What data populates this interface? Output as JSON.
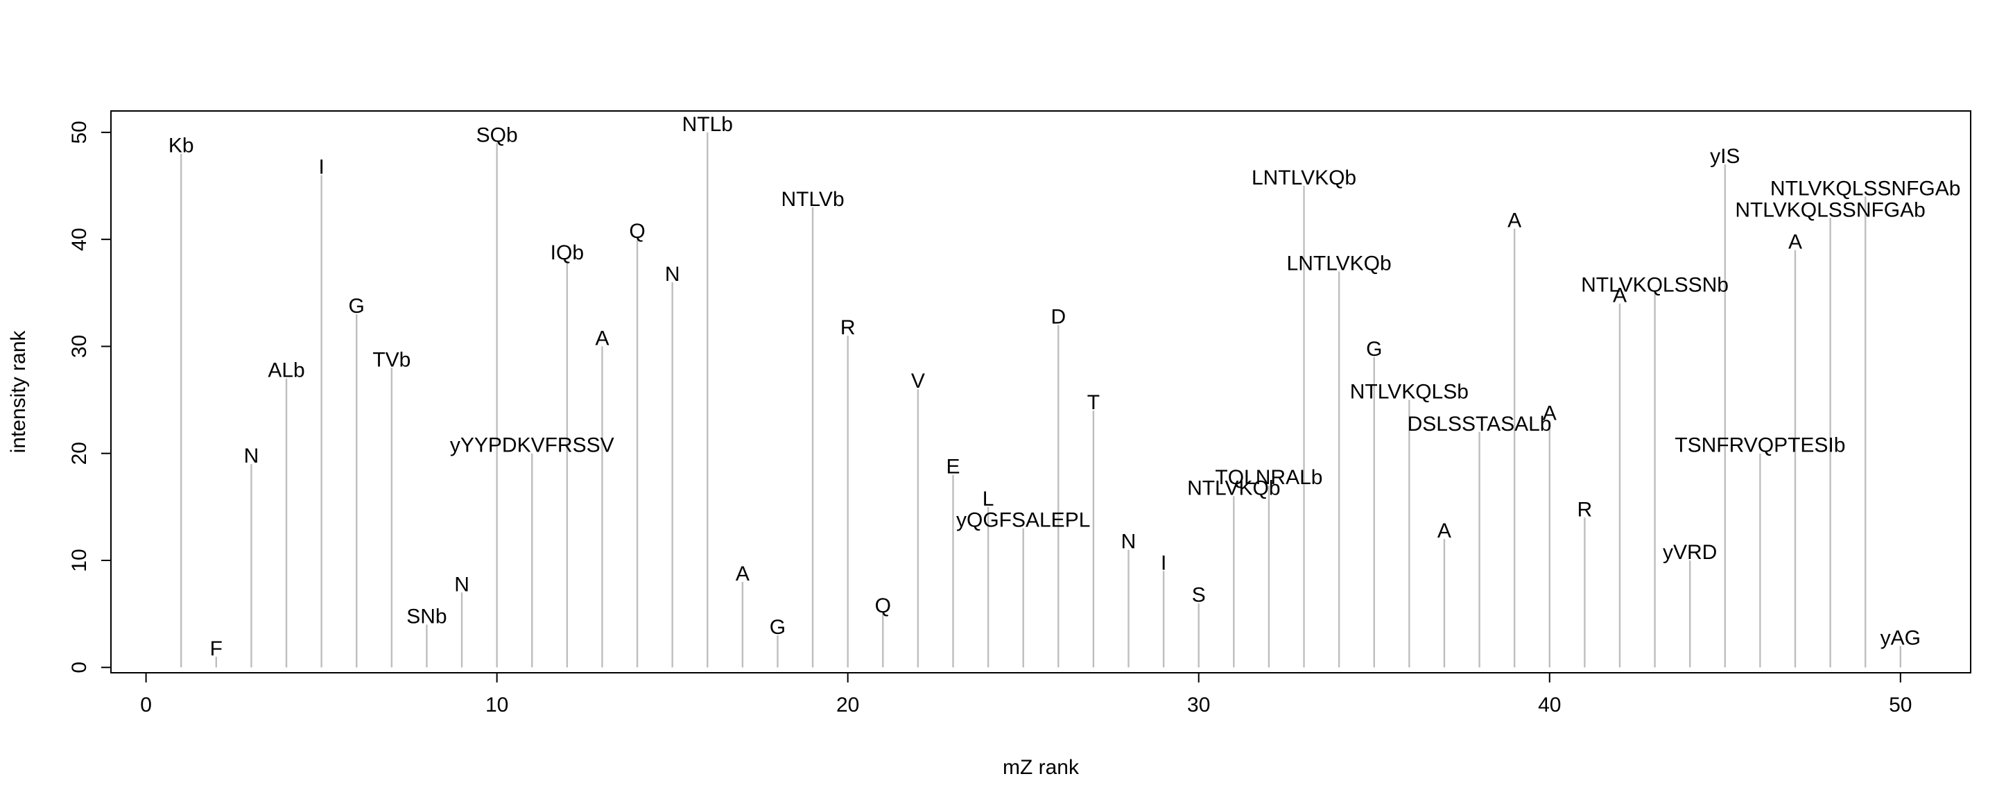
{
  "chart_data": {
    "type": "bar",
    "style": "vertical-stems",
    "xlabel": "mZ rank",
    "ylabel": "intensity rank",
    "xlim": [
      -1,
      52
    ],
    "ylim": [
      -0.5,
      52
    ],
    "xticks": [
      0,
      10,
      20,
      30,
      40,
      50
    ],
    "yticks": [
      0,
      10,
      20,
      30,
      40,
      50
    ],
    "grid": false,
    "stem_color": "#bebebe",
    "points": [
      {
        "x": 1,
        "y": 48,
        "label": "Kb"
      },
      {
        "x": 2,
        "y": 1,
        "label": "F"
      },
      {
        "x": 3,
        "y": 19,
        "label": "N"
      },
      {
        "x": 4,
        "y": 27,
        "label": "ALb"
      },
      {
        "x": 5,
        "y": 46,
        "label": "I"
      },
      {
        "x": 6,
        "y": 33,
        "label": "G"
      },
      {
        "x": 7,
        "y": 28,
        "label": "TVb"
      },
      {
        "x": 8,
        "y": 4,
        "label": "SNb"
      },
      {
        "x": 9,
        "y": 7,
        "label": "N"
      },
      {
        "x": 10,
        "y": 49,
        "label": "SQb"
      },
      {
        "x": 11,
        "y": 20,
        "label": "yYYPDKVFRSSV"
      },
      {
        "x": 12,
        "y": 38,
        "label": "IQb"
      },
      {
        "x": 13,
        "y": 30,
        "label": "A"
      },
      {
        "x": 14,
        "y": 40,
        "label": "Q"
      },
      {
        "x": 15,
        "y": 36,
        "label": "N"
      },
      {
        "x": 16,
        "y": 50,
        "label": "NTLb"
      },
      {
        "x": 17,
        "y": 8,
        "label": "A"
      },
      {
        "x": 18,
        "y": 3,
        "label": "G"
      },
      {
        "x": 19,
        "y": 43,
        "label": "NTLVb"
      },
      {
        "x": 20,
        "y": 31,
        "label": "R"
      },
      {
        "x": 21,
        "y": 5,
        "label": "Q"
      },
      {
        "x": 22,
        "y": 26,
        "label": "V"
      },
      {
        "x": 23,
        "y": 18,
        "label": "E"
      },
      {
        "x": 24,
        "y": 15,
        "label": "L"
      },
      {
        "x": 25,
        "y": 13,
        "label": "yQGFSALEPL"
      },
      {
        "x": 26,
        "y": 32,
        "label": "D"
      },
      {
        "x": 27,
        "y": 24,
        "label": "T"
      },
      {
        "x": 28,
        "y": 11,
        "label": "N"
      },
      {
        "x": 29,
        "y": 9,
        "label": "I"
      },
      {
        "x": 30,
        "y": 6,
        "label": "S"
      },
      {
        "x": 31,
        "y": 16,
        "label": "NTLVKQb"
      },
      {
        "x": 32,
        "y": 17,
        "label": "TQLNRALb"
      },
      {
        "x": 33,
        "y": 45,
        "label": "LNTLVKQb"
      },
      {
        "x": 34,
        "y": 37,
        "label": "LNTLVKQb"
      },
      {
        "x": 35,
        "y": 29,
        "label": "G"
      },
      {
        "x": 36,
        "y": 25,
        "label": "NTLVKQLSb"
      },
      {
        "x": 37,
        "y": 12,
        "label": "A"
      },
      {
        "x": 38,
        "y": 22,
        "label": "DSLSSTASALb"
      },
      {
        "x": 39,
        "y": 41,
        "label": "A"
      },
      {
        "x": 40,
        "y": 23,
        "label": "A"
      },
      {
        "x": 41,
        "y": 14,
        "label": "R"
      },
      {
        "x": 42,
        "y": 34,
        "label": "A"
      },
      {
        "x": 43,
        "y": 35,
        "label": "NTLVKQLSSNb"
      },
      {
        "x": 44,
        "y": 10,
        "label": "yVRD"
      },
      {
        "x": 45,
        "y": 47,
        "label": "yIS"
      },
      {
        "x": 46,
        "y": 20,
        "label": "TSNFRVQPTESIb"
      },
      {
        "x": 47,
        "y": 39,
        "label": "A"
      },
      {
        "x": 48,
        "y": 42,
        "label": "NTLVKQLSSNFGAb"
      },
      {
        "x": 49,
        "y": 44,
        "label": "NTLVKQLSSNFGAb"
      },
      {
        "x": 50,
        "y": 2,
        "label": "yAG"
      }
    ]
  }
}
